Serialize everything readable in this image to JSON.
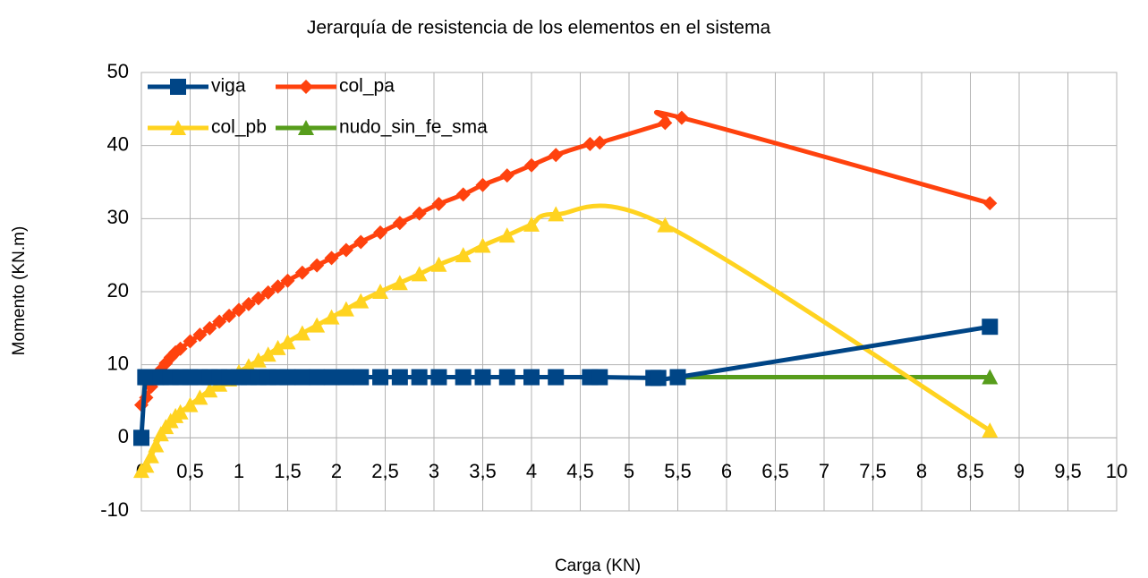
{
  "chart_data": {
    "type": "line",
    "title": "Jerarquía de resistencia de los elementos en el sistema",
    "xlabel": "Carga (KN)",
    "ylabel": "Momento (KN.m)",
    "xlim": [
      0,
      10
    ],
    "ylim": [
      -10,
      50
    ],
    "xticks": [
      0,
      {
        "value": 0.5,
        "label": "0,5"
      },
      1,
      {
        "value": 1.5,
        "label": "1,5"
      },
      2,
      {
        "value": 2.5,
        "label": "2,5"
      },
      3,
      {
        "value": 3.5,
        "label": "3,5"
      },
      4,
      {
        "value": 4.5,
        "label": "4,5"
      },
      5,
      {
        "value": 5.5,
        "label": "5,5"
      },
      6,
      {
        "value": 6.5,
        "label": "6,5"
      },
      7,
      {
        "value": 7.5,
        "label": "7,5"
      },
      8,
      {
        "value": 8.5,
        "label": "8,5"
      },
      9,
      {
        "value": 9.5,
        "label": "9,5"
      },
      10
    ],
    "yticks": [
      -10,
      0,
      10,
      20,
      30,
      40,
      50
    ],
    "grid": true,
    "smooth": true,
    "legend": "top-left",
    "series": [
      {
        "name": "viga",
        "color": "#004586",
        "marker": "square",
        "x": [
          0,
          0.04,
          0.05,
          0.1,
          0.15,
          0.2,
          0.3,
          0.4,
          0.5,
          0.6,
          0.7,
          0.8,
          0.9,
          1.0,
          1.1,
          1.2,
          1.3,
          1.4,
          1.5,
          1.65,
          1.8,
          1.95,
          2.1,
          2.25,
          2.45,
          2.65,
          2.85,
          3.05,
          3.3,
          3.5,
          3.75,
          4.0,
          4.25,
          4.6,
          4.7,
          5.25,
          5.3,
          5.5,
          8.7
        ],
        "values": [
          0,
          8.3,
          8.3,
          8.3,
          8.3,
          8.3,
          8.3,
          8.3,
          8.3,
          8.3,
          8.3,
          8.3,
          8.3,
          8.3,
          8.3,
          8.3,
          8.3,
          8.3,
          8.3,
          8.3,
          8.3,
          8.3,
          8.3,
          8.3,
          8.3,
          8.3,
          8.3,
          8.3,
          8.3,
          8.3,
          8.3,
          8.3,
          8.3,
          8.3,
          8.3,
          8.2,
          8.2,
          8.3,
          15.2
        ]
      },
      {
        "name": "col_pa",
        "color": "#ff420e",
        "marker": "diamond",
        "x": [
          0,
          0.05,
          0.1,
          0.15,
          0.2,
          0.25,
          0.3,
          0.35,
          0.4,
          0.5,
          0.6,
          0.7,
          0.8,
          0.9,
          1.0,
          1.1,
          1.2,
          1.3,
          1.4,
          1.5,
          1.65,
          1.8,
          1.95,
          2.1,
          2.25,
          2.45,
          2.65,
          2.85,
          3.05,
          3.3,
          3.5,
          3.75,
          4.0,
          4.25,
          4.6,
          4.7,
          5.37,
          5.54,
          8.7
        ],
        "values": [
          4.5,
          5.5,
          7,
          8.3,
          9.3,
          10.2,
          11,
          11.7,
          12.2,
          13.2,
          14.1,
          15,
          15.9,
          16.7,
          17.5,
          18.3,
          19.1,
          19.9,
          20.7,
          21.5,
          22.6,
          23.6,
          24.6,
          25.7,
          26.8,
          28.1,
          29.4,
          30.7,
          32,
          33.3,
          34.6,
          35.9,
          37.3,
          38.7,
          40.2,
          40.4,
          43.1,
          43.8,
          32.1
        ]
      },
      {
        "name": "col_pb",
        "color": "#ffd320",
        "marker": "triangle",
        "x": [
          0,
          0.05,
          0.1,
          0.15,
          0.2,
          0.25,
          0.3,
          0.35,
          0.4,
          0.5,
          0.6,
          0.7,
          0.8,
          0.9,
          1.0,
          1.1,
          1.2,
          1.3,
          1.4,
          1.5,
          1.65,
          1.8,
          1.95,
          2.1,
          2.25,
          2.45,
          2.65,
          2.85,
          3.05,
          3.3,
          3.5,
          3.75,
          4.0,
          4.25,
          5.37,
          8.7
        ],
        "values": [
          -4.5,
          -3.8,
          -2.5,
          -1,
          0.5,
          1.5,
          2.3,
          3,
          3.5,
          4.5,
          5.5,
          6.5,
          7.3,
          8,
          9,
          9.8,
          10.6,
          11.4,
          12.3,
          13.1,
          14.3,
          15.4,
          16.5,
          17.6,
          18.7,
          20,
          21.2,
          22.4,
          23.7,
          25,
          26.3,
          27.7,
          29.2,
          30.6,
          29.1,
          1
        ]
      },
      {
        "name": "nudo_sin_fe_sma",
        "color": "#579d1c",
        "marker": "triangle",
        "x": [
          5.5,
          8.7
        ],
        "values": [
          8.3,
          8.3
        ]
      }
    ]
  }
}
